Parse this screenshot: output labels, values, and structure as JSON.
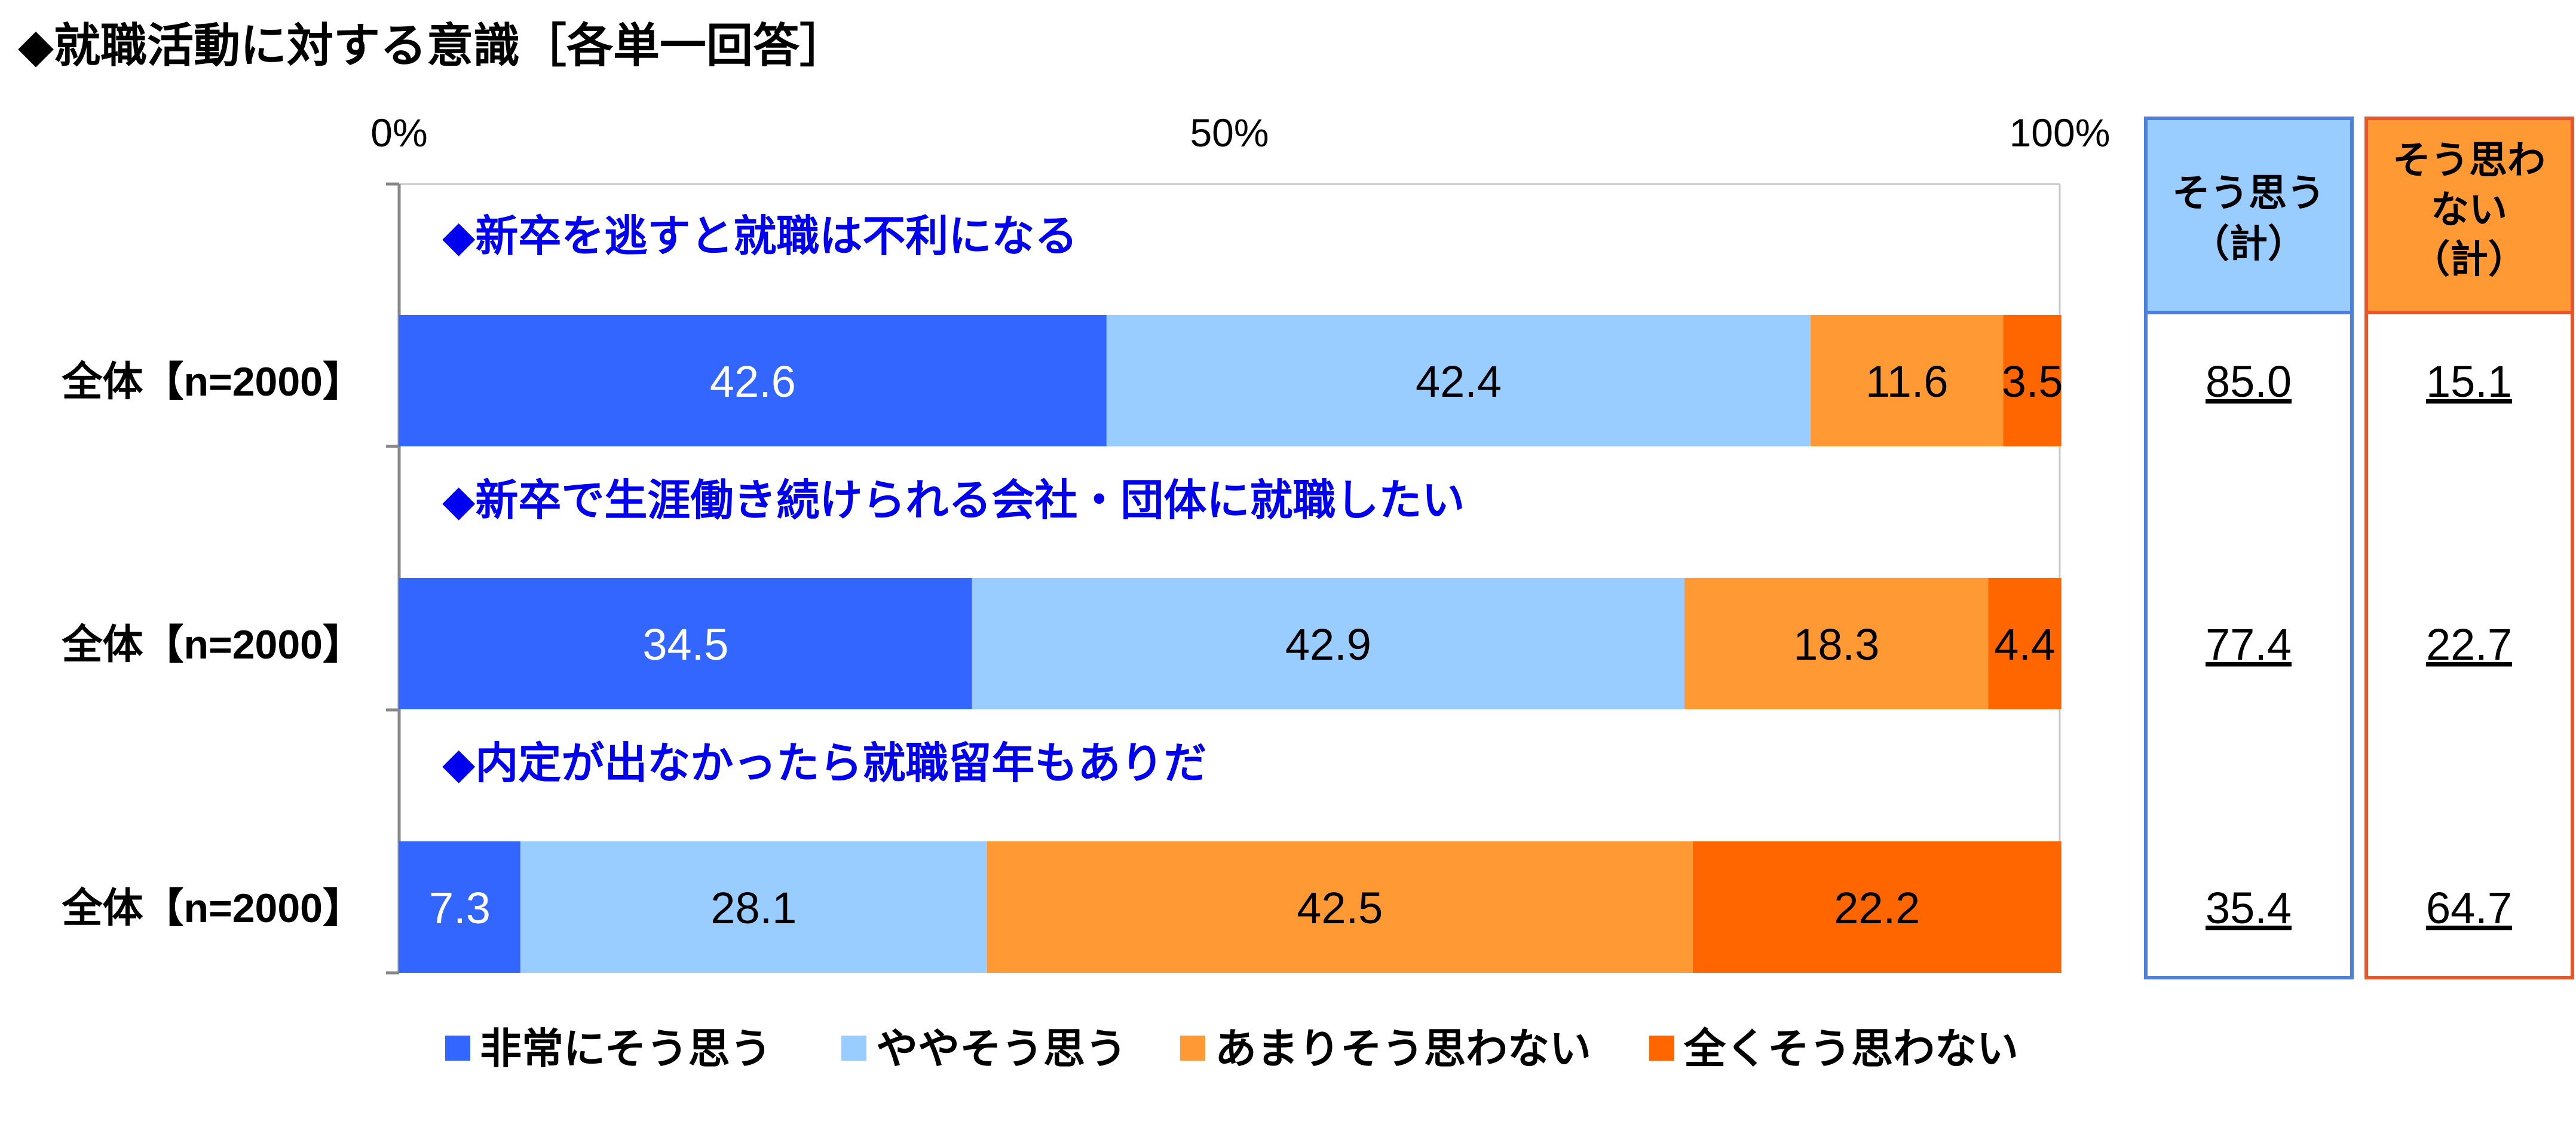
{
  "title": "◆就職活動に対する意識［各単一回答］",
  "colors": {
    "very_agree": "#3366ff",
    "somewhat_agree": "#99ccff",
    "not_much": "#ff9933",
    "not_at_all": "#ff6600",
    "agree_box_border": "#4d7fdd",
    "agree_box_fill": "#99ccff",
    "disagree_box_border": "#e8572a",
    "disagree_box_fill": "#ff9933",
    "question_text": "#0000ee"
  },
  "chart_data": {
    "type": "bar",
    "orientation": "horizontal-stacked-100%",
    "x_ticks": [
      "0%",
      "50%",
      "100%"
    ],
    "xlim": [
      0,
      100
    ],
    "questions": [
      "◆新卒を逃すと就職は不利になる",
      "◆新卒で生涯働き続けられる会社・団体に就職したい",
      "◆内定が出なかったら就職留年もありだ"
    ],
    "categories": [
      "全体【n=2000】",
      "全体【n=2000】",
      "全体【n=2000】"
    ],
    "series": [
      {
        "name": "非常にそう思う",
        "values": [
          42.6,
          34.5,
          7.3
        ]
      },
      {
        "name": "ややそう思う",
        "values": [
          42.4,
          42.9,
          28.1
        ]
      },
      {
        "name": "あまりそう思わない",
        "values": [
          11.6,
          18.3,
          42.5
        ]
      },
      {
        "name": "全くそう思わない",
        "values": [
          3.5,
          4.4,
          22.2
        ]
      }
    ],
    "summary": {
      "agree_header": [
        "そう思う",
        "（計）"
      ],
      "disagree_header": [
        "そう思わ",
        "ない",
        "（計）"
      ],
      "agree_values": [
        "85.0",
        "77.4",
        "35.4"
      ],
      "disagree_values": [
        "15.1",
        "22.7",
        "64.7"
      ]
    },
    "legend": [
      "非常にそう思う",
      "ややそう思う",
      "あまりそう思わない",
      "全くそう思わない"
    ],
    "legend_position": "bottom"
  }
}
